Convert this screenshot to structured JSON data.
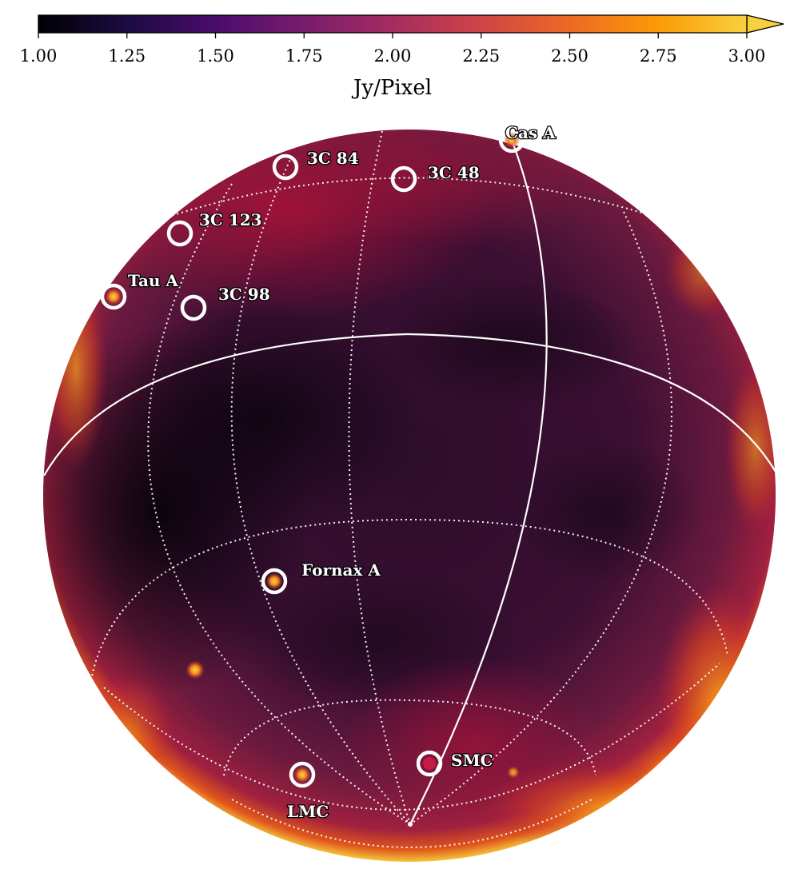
{
  "colorbar": {
    "unit_label": "Jy/Pixel",
    "min": 1.0,
    "max": 3.0,
    "extend": "max",
    "colormap": "inferno-like",
    "ticks": [
      "1.00",
      "1.25",
      "1.50",
      "1.75",
      "2.00",
      "2.25",
      "2.50",
      "2.75",
      "3.00"
    ]
  },
  "map": {
    "projection": "orthographic",
    "graticule": "dotted-white",
    "sources": [
      {
        "name": "Cas A"
      },
      {
        "name": "3C 84"
      },
      {
        "name": "3C 48"
      },
      {
        "name": "3C 123"
      },
      {
        "name": "Tau A"
      },
      {
        "name": "3C 98"
      },
      {
        "name": "Fornax A"
      },
      {
        "name": "SMC"
      },
      {
        "name": "LMC"
      }
    ]
  }
}
